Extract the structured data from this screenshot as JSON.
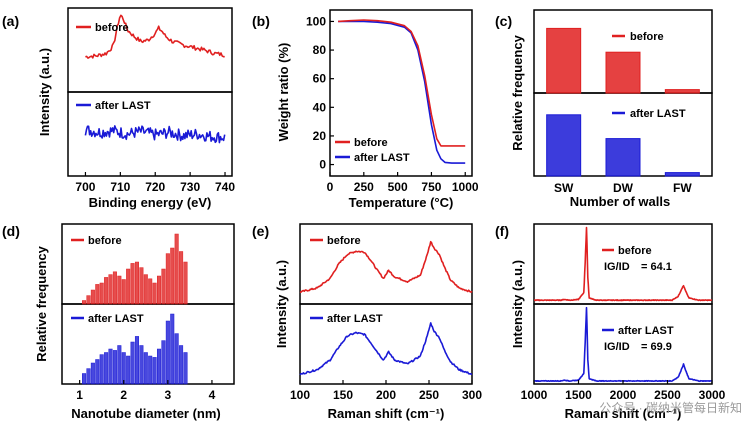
{
  "watermark": "公众号 · 碳纳米管每日新知",
  "colors": {
    "before": "#e02020",
    "after": "#1a1ad6",
    "axis": "#000000",
    "grid": "#d0d0d0"
  },
  "chart_data": [
    {
      "panel": "a",
      "panel_label": "(a)",
      "type": "line",
      "title": "",
      "xlabel": "Binding energy (eV)",
      "ylabel": "Intensity (a.u.)",
      "xlim": [
        695,
        742
      ],
      "xticks": [
        700,
        710,
        720,
        730,
        740
      ],
      "series": [
        {
          "name": "before",
          "legend": "before",
          "x": [
            700,
            703,
            706,
            708,
            709,
            710,
            711,
            712,
            714,
            716,
            718,
            720,
            721,
            722,
            723,
            725,
            728,
            731,
            734,
            737,
            740
          ],
          "y": [
            0.42,
            0.43,
            0.46,
            0.55,
            0.75,
            0.92,
            0.86,
            0.74,
            0.66,
            0.6,
            0.62,
            0.7,
            0.76,
            0.72,
            0.66,
            0.6,
            0.56,
            0.53,
            0.5,
            0.46,
            0.44
          ]
        },
        {
          "name": "after LAST",
          "legend": "after LAST",
          "x": [
            700,
            704,
            708,
            712,
            716,
            720,
            724,
            728,
            732,
            736,
            740
          ],
          "y": [
            0.55,
            0.52,
            0.54,
            0.5,
            0.53,
            0.49,
            0.52,
            0.48,
            0.5,
            0.47,
            0.46
          ]
        }
      ]
    },
    {
      "panel": "b",
      "panel_label": "(b)",
      "type": "line",
      "title": "",
      "xlabel": "Temperature (°C)",
      "ylabel": "Weight ratio (%)",
      "xlim": [
        0,
        1050
      ],
      "ylim": [
        -8,
        108
      ],
      "xticks": [
        0,
        250,
        500,
        750,
        1000
      ],
      "yticks": [
        0,
        20,
        40,
        60,
        80,
        100
      ],
      "series": [
        {
          "name": "before",
          "legend": "before",
          "x": [
            60,
            150,
            250,
            350,
            450,
            550,
            600,
            650,
            700,
            750,
            790,
            820,
            850,
            900,
            1000
          ],
          "y": [
            100,
            100.5,
            101,
            100.5,
            99.5,
            97,
            93,
            83,
            62,
            35,
            18,
            13,
            13,
            13,
            13
          ]
        },
        {
          "name": "after LAST",
          "legend": "after LAST",
          "x": [
            60,
            150,
            250,
            350,
            450,
            550,
            600,
            650,
            700,
            750,
            790,
            820,
            850,
            900,
            950,
            1000
          ],
          "y": [
            100,
            100,
            100,
            99.5,
            98.5,
            96,
            92,
            80,
            58,
            28,
            10,
            4,
            1.5,
            1,
            1,
            1
          ]
        }
      ]
    },
    {
      "panel": "c",
      "panel_label": "(c)",
      "type": "bar",
      "title": "",
      "xlabel": "Number of walls",
      "ylabel": "Relative frequency",
      "categories": [
        "SW",
        "DW",
        "FW"
      ],
      "series": [
        {
          "name": "before",
          "legend": "before",
          "values": [
            0.95,
            0.6,
            0.05
          ]
        },
        {
          "name": "after LAST",
          "legend": "after LAST",
          "values": [
            0.9,
            0.55,
            0.05
          ]
        }
      ]
    },
    {
      "panel": "d",
      "panel_label": "(d)",
      "type": "bar",
      "title": "",
      "xlabel": "Nanotube diameter (nm)",
      "ylabel": "Relative frequency",
      "xlim": [
        0.6,
        4.5
      ],
      "xticks": [
        1,
        2,
        3,
        4
      ],
      "series": [
        {
          "name": "before",
          "legend": "before",
          "x": [
            1.1,
            1.2,
            1.3,
            1.4,
            1.5,
            1.6,
            1.7,
            1.8,
            1.9,
            2.0,
            2.1,
            2.2,
            2.3,
            2.4,
            2.5,
            2.6,
            2.7,
            2.8,
            2.9,
            3.0,
            3.1,
            3.2,
            3.3,
            3.4
          ],
          "values": [
            0.05,
            0.12,
            0.2,
            0.28,
            0.3,
            0.38,
            0.42,
            0.46,
            0.4,
            0.35,
            0.5,
            0.58,
            0.6,
            0.52,
            0.42,
            0.36,
            0.3,
            0.4,
            0.5,
            0.72,
            0.8,
            1.0,
            0.75,
            0.6
          ]
        },
        {
          "name": "after LAST",
          "legend": "after LAST",
          "x": [
            1.1,
            1.2,
            1.3,
            1.4,
            1.5,
            1.6,
            1.7,
            1.8,
            1.9,
            2.0,
            2.1,
            2.2,
            2.3,
            2.4,
            2.5,
            2.6,
            2.7,
            2.8,
            2.9,
            3.0,
            3.1,
            3.2,
            3.3,
            3.4
          ],
          "values": [
            0.15,
            0.22,
            0.3,
            0.35,
            0.42,
            0.45,
            0.5,
            0.48,
            0.55,
            0.45,
            0.4,
            0.6,
            0.68,
            0.55,
            0.45,
            0.4,
            0.38,
            0.5,
            0.62,
            0.9,
            1.0,
            0.72,
            0.55,
            0.45
          ]
        }
      ]
    },
    {
      "panel": "e",
      "panel_label": "(e)",
      "type": "line",
      "title": "",
      "xlabel": "Raman shift (cm⁻¹)",
      "ylabel": "Intensity (a.u.)",
      "xlim": [
        100,
        300
      ],
      "xticks": [
        100,
        150,
        200,
        250,
        300
      ],
      "series": [
        {
          "name": "before",
          "legend": "before",
          "x": [
            100,
            120,
            135,
            145,
            155,
            165,
            175,
            182,
            190,
            197,
            203,
            210,
            225,
            240,
            248,
            252,
            256,
            262,
            268,
            275,
            285,
            300
          ],
          "y": [
            0.15,
            0.2,
            0.32,
            0.5,
            0.62,
            0.66,
            0.65,
            0.55,
            0.42,
            0.32,
            0.42,
            0.34,
            0.28,
            0.36,
            0.62,
            0.78,
            0.7,
            0.62,
            0.46,
            0.3,
            0.2,
            0.15
          ]
        },
        {
          "name": "after LAST",
          "legend": "after LAST",
          "x": [
            100,
            120,
            135,
            145,
            155,
            165,
            175,
            182,
            190,
            197,
            203,
            210,
            225,
            240,
            248,
            252,
            256,
            262,
            268,
            275,
            285,
            300
          ],
          "y": [
            0.12,
            0.18,
            0.3,
            0.46,
            0.6,
            0.64,
            0.62,
            0.52,
            0.4,
            0.3,
            0.4,
            0.3,
            0.25,
            0.35,
            0.6,
            0.76,
            0.66,
            0.58,
            0.42,
            0.28,
            0.18,
            0.12
          ]
        }
      ]
    },
    {
      "panel": "f",
      "panel_label": "(f)",
      "type": "line",
      "title": "",
      "xlabel": "Raman shift (cm⁻¹)",
      "ylabel": "Intensity (a.u.)",
      "xlim": [
        1000,
        3000
      ],
      "xticks": [
        1000,
        1500,
        2000,
        2500,
        3000
      ],
      "ratio_label": "IG/ID",
      "series": [
        {
          "name": "before",
          "legend": "before",
          "ratio_value": "= 64.1",
          "x": [
            1000,
            1300,
            1340,
            1400,
            1500,
            1560,
            1575,
            1590,
            1605,
            1620,
            1700,
            1900,
            2300,
            2550,
            2620,
            2660,
            2680,
            2700,
            2740,
            2850,
            3000
          ],
          "y": [
            0.05,
            0.05,
            0.06,
            0.05,
            0.06,
            0.15,
            0.55,
            1.0,
            0.35,
            0.08,
            0.05,
            0.05,
            0.05,
            0.05,
            0.1,
            0.2,
            0.24,
            0.18,
            0.08,
            0.05,
            0.05
          ]
        },
        {
          "name": "after LAST",
          "legend": "after LAST",
          "ratio_value": "= 69.9",
          "x": [
            1000,
            1300,
            1340,
            1400,
            1500,
            1560,
            1575,
            1590,
            1605,
            1620,
            1700,
            1900,
            2300,
            2550,
            2620,
            2660,
            2680,
            2700,
            2740,
            2850,
            3000
          ],
          "y": [
            0.04,
            0.04,
            0.05,
            0.04,
            0.05,
            0.14,
            0.55,
            1.0,
            0.32,
            0.07,
            0.04,
            0.04,
            0.04,
            0.04,
            0.09,
            0.2,
            0.26,
            0.19,
            0.07,
            0.04,
            0.04
          ]
        }
      ]
    }
  ]
}
